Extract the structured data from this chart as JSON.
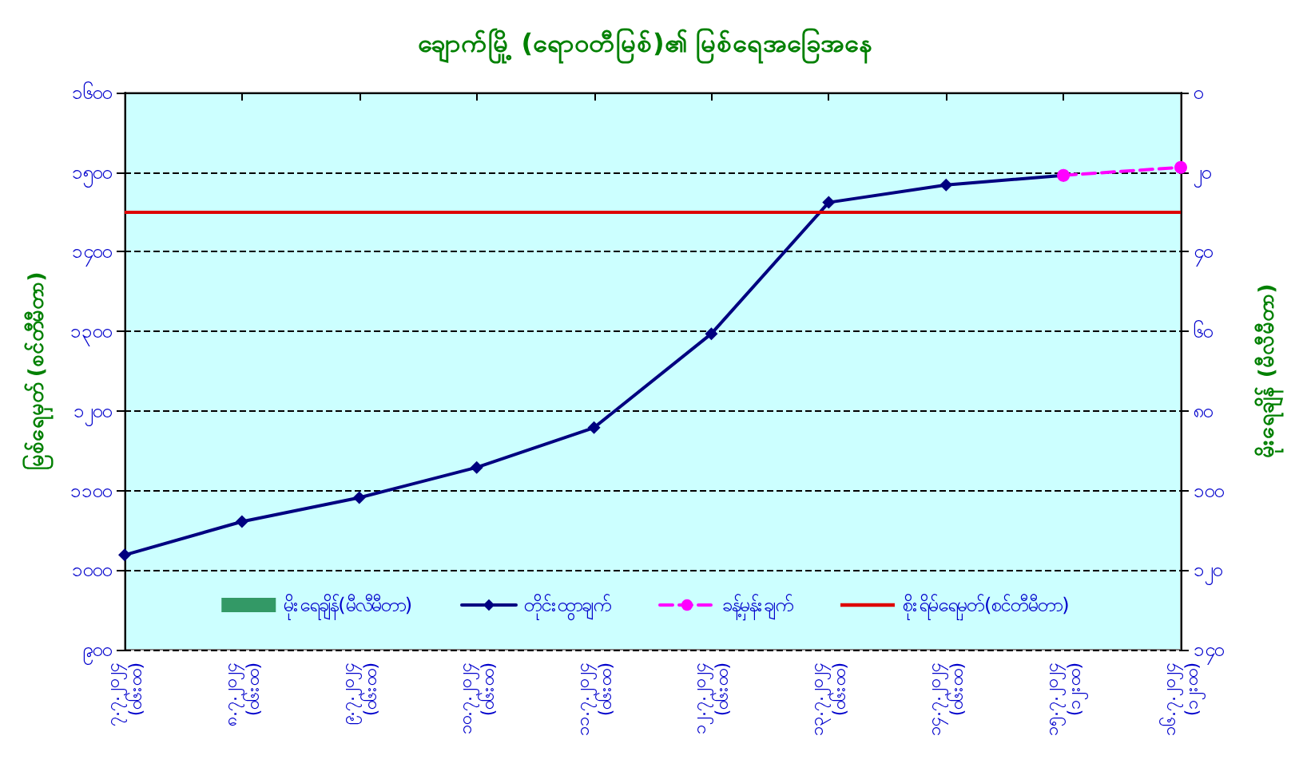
{
  "chart_data": {
    "type": "line",
    "title": "ချောက်မြို့ (ရောဝတီမြစ်)၏ မြစ်ရေအခြေအနေ",
    "ylabel": "မြစ်ရေမှတ် (စင်တီမီတာ)",
    "y2label": "မိုးရေချိန် (မီလီမီတာ)",
    "categories": [
      "၇.၇.၂၀၂၄ (၀၆း၀၀)",
      "၈.၇.၂၀၂၄ (၀၆း၀၀)",
      "၉.၇.၂၀၂၄ (၀၆း၀၀)",
      "၁၀.၇.၂၀၂၄ (၀၆း၀၀)",
      "၁၁.၇.၂၀၂၄ (၀၆း၀၀)",
      "၁၂.၇.၂၀၂၄ (၀၆း၀၀)",
      "၁၃.၇.၂၀၂၄ (၀၆း၀၀)",
      "၁၄.၇.၂၀၂၄ (၀၆း၀၀)",
      "၁၅.၇.၂၀၂၄ (၁၂း၀၀)",
      "၁၆.၇.၂၀၂၄ (၁၂း၀၀)"
    ],
    "series": [
      {
        "name": "မိုးရေချိန်(မီလီမီတာ)",
        "type": "bar",
        "color": "#339966",
        "values": [
          null,
          null,
          null,
          null,
          null,
          null,
          null,
          null,
          null,
          null
        ]
      },
      {
        "name": "တိုင်းထွာချက်",
        "type": "line",
        "color": "#000080",
        "marker": "diamond",
        "line_style": "solid",
        "values": [
          1019,
          1061,
          1091,
          1129,
          1179,
          1297,
          1462,
          1484,
          1496,
          null
        ]
      },
      {
        "name": "ခန့်မှန်းချက်",
        "type": "line",
        "color": "#ff00ff",
        "marker": "circle",
        "line_style": "dashed",
        "values": [
          null,
          null,
          null,
          null,
          null,
          null,
          null,
          null,
          1496,
          1506
        ]
      }
    ],
    "ref_lines": [
      {
        "axis": "y",
        "value": 1450,
        "label": "စိုးရိမ်ရေမှတ်(စင်တီမီတာ)",
        "color": "#dd0000",
        "line_style": "solid"
      }
    ],
    "ylim": [
      900,
      1600
    ],
    "yticks": [
      {
        "value": 900,
        "label": "၉၀၀"
      },
      {
        "value": 1000,
        "label": "၁၀၀၀"
      },
      {
        "value": 1100,
        "label": "၁၁၀၀"
      },
      {
        "value": 1200,
        "label": "၁၂၀၀"
      },
      {
        "value": 1300,
        "label": "၁၃၀၀"
      },
      {
        "value": 1400,
        "label": "၁၄၀၀"
      },
      {
        "value": 1500,
        "label": "၁၅၀၀"
      },
      {
        "value": 1600,
        "label": "၁၆၀၀"
      }
    ],
    "y2lim": [
      140,
      0
    ],
    "y2ticks": [
      {
        "value": 0,
        "label": "၀"
      },
      {
        "value": 20,
        "label": "၂၀"
      },
      {
        "value": 40,
        "label": "၄၀"
      },
      {
        "value": 60,
        "label": "၆၀"
      },
      {
        "value": 80,
        "label": "၈၀"
      },
      {
        "value": 100,
        "label": "၁၀၀"
      },
      {
        "value": 120,
        "label": "၁၂၀"
      },
      {
        "value": 140,
        "label": "၁၄၀"
      }
    ],
    "grid": "y",
    "legend": "bottom"
  }
}
